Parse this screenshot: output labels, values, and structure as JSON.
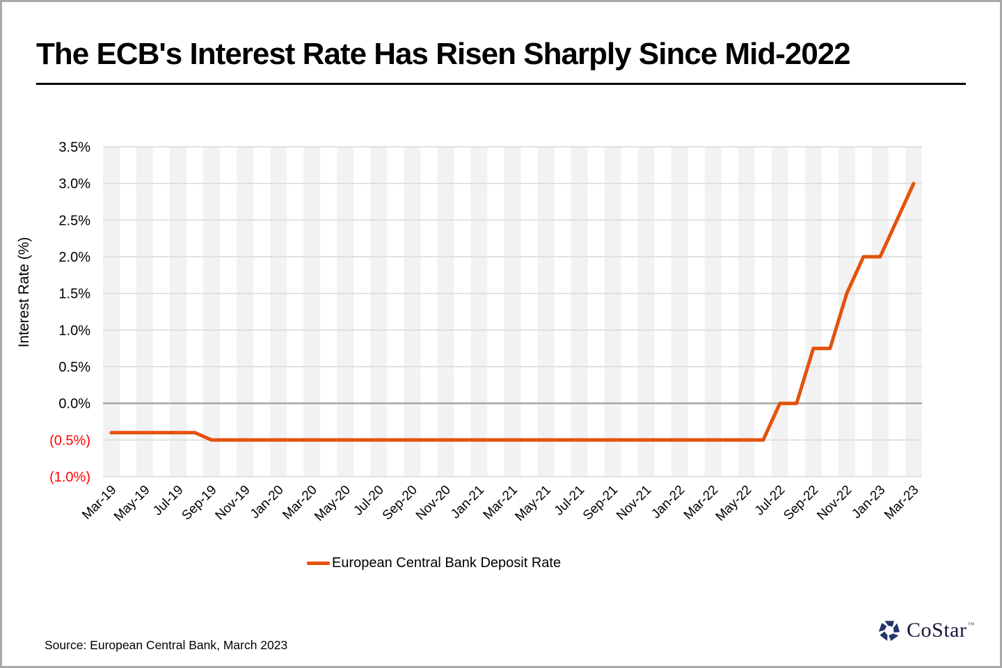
{
  "colors": {
    "line": "#E4520C",
    "negative_label": "#FF0000",
    "gridline": "#D9D9D9",
    "zero_line": "#A6A6A6",
    "band": "#F2F2F2",
    "logo_navy": "#24356B",
    "text": "#000000"
  },
  "footer": {
    "source": "Source: European Central Bank, March 2023"
  },
  "brand": {
    "name": "CoStar",
    "tm": "™"
  },
  "chart_data": {
    "type": "line",
    "title": "The ECB's Interest Rate Has Risen Sharply Since Mid-2022",
    "xlabel": "",
    "ylabel": "Interest Rate (%)",
    "ylim": [
      -1.0,
      3.5
    ],
    "ytick_step": 0.5,
    "grid": "horizontal",
    "plot_bands": "alternating-month-columns",
    "legend_position": "bottom",
    "xtick_every": 2,
    "yticks": [
      {
        "value": 3.5,
        "label": "3.5%"
      },
      {
        "value": 3.0,
        "label": "3.0%"
      },
      {
        "value": 2.5,
        "label": "2.5%"
      },
      {
        "value": 2.0,
        "label": "2.0%"
      },
      {
        "value": 1.5,
        "label": "1.5%"
      },
      {
        "value": 1.0,
        "label": "1.0%"
      },
      {
        "value": 0.5,
        "label": "0.5%"
      },
      {
        "value": 0.0,
        "label": "0.0%"
      },
      {
        "value": -0.5,
        "label": "(0.5%)"
      },
      {
        "value": -1.0,
        "label": "(1.0%)"
      }
    ],
    "x": [
      "Mar-19",
      "Apr-19",
      "May-19",
      "Jun-19",
      "Jul-19",
      "Aug-19",
      "Sep-19",
      "Oct-19",
      "Nov-19",
      "Dec-19",
      "Jan-20",
      "Feb-20",
      "Mar-20",
      "Apr-20",
      "May-20",
      "Jun-20",
      "Jul-20",
      "Aug-20",
      "Sep-20",
      "Oct-20",
      "Nov-20",
      "Dec-20",
      "Jan-21",
      "Feb-21",
      "Mar-21",
      "Apr-21",
      "May-21",
      "Jun-21",
      "Jul-21",
      "Aug-21",
      "Sep-21",
      "Oct-21",
      "Nov-21",
      "Dec-21",
      "Jan-22",
      "Feb-22",
      "Mar-22",
      "Apr-22",
      "May-22",
      "Jun-22",
      "Jul-22",
      "Aug-22",
      "Sep-22",
      "Oct-22",
      "Nov-22",
      "Dec-22",
      "Jan-23",
      "Feb-23",
      "Mar-23"
    ],
    "series": [
      {
        "name": "European Central Bank Deposit Rate",
        "values": [
          -0.4,
          -0.4,
          -0.4,
          -0.4,
          -0.4,
          -0.4,
          -0.5,
          -0.5,
          -0.5,
          -0.5,
          -0.5,
          -0.5,
          -0.5,
          -0.5,
          -0.5,
          -0.5,
          -0.5,
          -0.5,
          -0.5,
          -0.5,
          -0.5,
          -0.5,
          -0.5,
          -0.5,
          -0.5,
          -0.5,
          -0.5,
          -0.5,
          -0.5,
          -0.5,
          -0.5,
          -0.5,
          -0.5,
          -0.5,
          -0.5,
          -0.5,
          -0.5,
          -0.5,
          -0.5,
          -0.5,
          0.0,
          0.0,
          0.75,
          0.75,
          1.5,
          2.0,
          2.0,
          2.5,
          3.0
        ]
      }
    ]
  }
}
